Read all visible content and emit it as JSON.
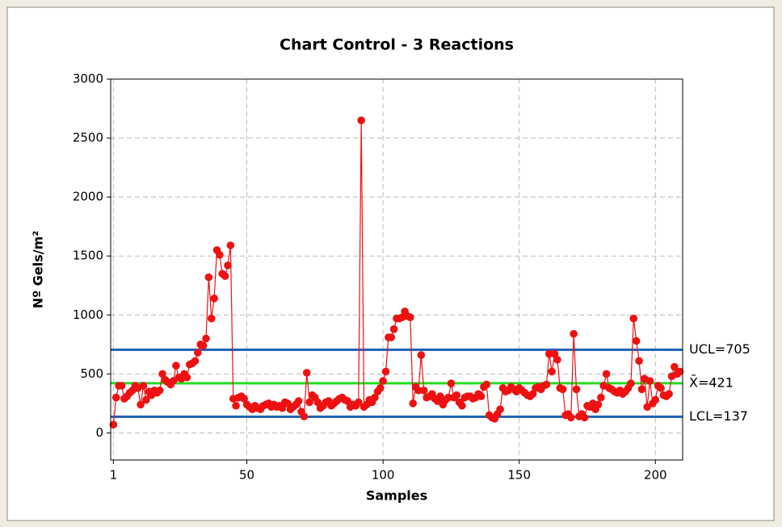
{
  "chart_data": {
    "type": "line",
    "title": "Chart Control - 3 Reactions",
    "x_label": "Samples",
    "y_label": "Nº Gels/m²",
    "x": [
      1,
      2,
      3,
      4,
      5,
      6,
      7,
      8,
      9,
      10,
      11,
      12,
      13,
      14,
      15,
      16,
      17,
      18,
      19,
      20,
      21,
      22,
      23,
      24,
      25,
      26,
      27,
      28,
      29,
      30,
      31,
      32,
      33,
      34,
      35,
      36,
      37,
      38,
      39,
      40,
      41,
      42,
      43,
      44,
      45,
      46,
      47,
      48,
      49,
      50,
      51,
      52,
      53,
      54,
      55,
      56,
      57,
      58,
      59,
      60,
      61,
      62,
      63,
      64,
      65,
      66,
      67,
      68,
      69,
      70,
      71,
      72,
      73,
      74,
      75,
      76,
      77,
      78,
      79,
      80,
      81,
      82,
      83,
      84,
      85,
      86,
      87,
      88,
      89,
      90,
      91,
      92,
      93,
      94,
      95,
      96,
      97,
      98,
      99,
      100,
      101,
      102,
      103,
      104,
      105,
      106,
      107,
      108,
      109,
      110,
      111,
      112,
      113,
      114,
      115,
      116,
      117,
      118,
      119,
      120,
      121,
      122,
      123,
      124,
      125,
      126,
      127,
      128,
      129,
      130,
      131,
      132,
      133,
      134,
      135,
      136,
      137,
      138,
      139,
      140,
      141,
      142,
      143,
      144,
      145,
      146,
      147,
      148,
      149,
      150,
      151,
      152,
      153,
      154,
      155,
      156,
      157,
      158,
      159,
      160,
      161,
      162,
      163,
      164,
      165,
      166,
      167,
      168,
      169,
      170,
      171,
      172,
      173,
      174,
      175,
      176,
      177,
      178,
      179,
      180,
      181,
      182,
      183,
      184,
      185,
      186,
      187,
      188,
      189,
      190,
      191,
      192,
      193,
      194,
      195,
      196,
      197,
      198,
      199,
      200,
      201,
      202,
      203,
      204,
      205,
      206,
      207,
      208,
      209
    ],
    "series": [
      {
        "name": "Samples",
        "color": "#ee1111",
        "values": [
          70,
          300,
          400,
          400,
          290,
          310,
          340,
          360,
          400,
          380,
          240,
          400,
          280,
          350,
          320,
          360,
          340,
          360,
          500,
          450,
          430,
          410,
          440,
          570,
          470,
          460,
          500,
          470,
          580,
          590,
          610,
          680,
          750,
          740,
          800,
          1320,
          970,
          1140,
          1550,
          1510,
          1350,
          1330,
          1420,
          1590,
          290,
          230,
          300,
          310,
          290,
          240,
          220,
          200,
          230,
          210,
          200,
          230,
          240,
          250,
          220,
          240,
          220,
          230,
          210,
          260,
          250,
          200,
          220,
          240,
          270,
          180,
          140,
          510,
          260,
          320,
          300,
          260,
          210,
          230,
          260,
          270,
          230,
          250,
          270,
          290,
          300,
          280,
          270,
          220,
          240,
          230,
          260,
          2650,
          220,
          240,
          280,
          260,
          300,
          350,
          380,
          440,
          520,
          810,
          810,
          880,
          970,
          970,
          980,
          1030,
          990,
          980,
          250,
          390,
          360,
          660,
          360,
          300,
          310,
          330,
          290,
          270,
          310,
          240,
          280,
          300,
          420,
          300,
          320,
          260,
          230,
          300,
          310,
          310,
          290,
          300,
          330,
          310,
          390,
          410,
          150,
          130,
          120,
          160,
          200,
          380,
          350,
          360,
          390,
          370,
          350,
          380,
          360,
          340,
          320,
          310,
          330,
          380,
          390,
          370,
          400,
          410,
          670,
          520,
          670,
          620,
          380,
          370,
          150,
          160,
          130,
          840,
          370,
          140,
          160,
          130,
          230,
          220,
          250,
          200,
          240,
          300,
          400,
          500,
          380,
          370,
          350,
          340,
          360,
          330,
          350,
          380,
          420,
          970,
          780,
          610,
          370,
          460,
          220,
          440,
          250,
          280,
          400,
          380,
          320,
          310,
          330,
          480,
          560,
          500,
          520
        ]
      }
    ],
    "control_limits": [
      {
        "label": "UCL=705",
        "value": 705,
        "color": "#1f5fb4"
      },
      {
        "label": "X̄=421",
        "value": 421,
        "color": "#22dd22"
      },
      {
        "label": "LCL=137",
        "value": 137,
        "color": "#1f5fb4"
      }
    ],
    "xlim": [
      0,
      210
    ],
    "ylim": [
      -230,
      3000
    ],
    "xticks": [
      1,
      50,
      100,
      150,
      200
    ],
    "yticks": [
      0,
      500,
      1000,
      1500,
      2000,
      2500,
      3000
    ],
    "grid": true
  }
}
